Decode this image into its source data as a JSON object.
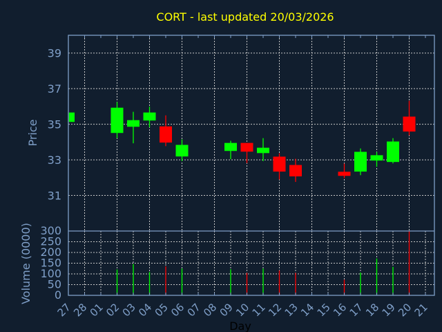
{
  "chart_data": {
    "type": "candlestick",
    "title": "CORT - last updated 20/03/2026",
    "title_color": "#ffff00",
    "xlabel": "Day",
    "ylabel_price": "Price",
    "ylabel_volume": "Volume (0000)",
    "price_ylim": [
      29,
      40
    ],
    "price_ticks": [
      "31",
      "33",
      "35",
      "37",
      "39"
    ],
    "volume_ylim": [
      0,
      300
    ],
    "volume_ticks": [
      "0",
      "50",
      "100",
      "150",
      "200",
      "250",
      "300"
    ],
    "x_tick_labels": [
      "27",
      "28",
      "01",
      "02",
      "03",
      "04",
      "05",
      "06",
      "07",
      "08",
      "09",
      "10",
      "11",
      "12",
      "13",
      "14",
      "15",
      "16",
      "17",
      "18",
      "19",
      "20",
      "21"
    ],
    "grid": true,
    "up_color": "#00ff00",
    "down_color": "#ff0000",
    "candles": [
      {
        "day": "27",
        "open": 35.13,
        "high": 35.66,
        "low": 35.13,
        "close": 35.66,
        "volume": null
      },
      {
        "day": "02",
        "open": 34.51,
        "high": 36.25,
        "low": 34.22,
        "close": 35.93,
        "volume": 121
      },
      {
        "day": "03",
        "open": 34.86,
        "high": 35.7,
        "low": 33.93,
        "close": 35.23,
        "volume": 146
      },
      {
        "day": "04",
        "open": 35.21,
        "high": 35.99,
        "low": 34.83,
        "close": 35.66,
        "volume": 109
      },
      {
        "day": "05",
        "open": 34.88,
        "high": 35.5,
        "low": 33.77,
        "close": 33.97,
        "volume": 135
      },
      {
        "day": "06",
        "open": 33.19,
        "high": 34.15,
        "low": 32.93,
        "close": 33.84,
        "volume": 125
      },
      {
        "day": "09",
        "open": 33.5,
        "high": 34.07,
        "low": 33.04,
        "close": 33.95,
        "volume": 122
      },
      {
        "day": "10",
        "open": 33.95,
        "high": 33.95,
        "low": 32.82,
        "close": 33.46,
        "volume": 105
      },
      {
        "day": "11",
        "open": 33.38,
        "high": 34.22,
        "low": 32.93,
        "close": 33.68,
        "volume": 125
      },
      {
        "day": "12",
        "open": 33.18,
        "high": 33.37,
        "low": 31.89,
        "close": 32.34,
        "volume": 116
      },
      {
        "day": "13",
        "open": 32.71,
        "high": 33.06,
        "low": 31.76,
        "close": 32.07,
        "volume": 105
      },
      {
        "day": "16",
        "open": 32.33,
        "high": 32.79,
        "low": 31.97,
        "close": 32.1,
        "volume": 73
      },
      {
        "day": "17",
        "open": 32.34,
        "high": 33.64,
        "low": 32.14,
        "close": 33.45,
        "volume": 106
      },
      {
        "day": "18",
        "open": 32.96,
        "high": 33.44,
        "low": 32.61,
        "close": 33.26,
        "volume": 172
      },
      {
        "day": "19",
        "open": 32.88,
        "high": 34.22,
        "low": 32.8,
        "close": 34.03,
        "volume": 133
      },
      {
        "day": "20",
        "open": 35.43,
        "high": 36.32,
        "low": 34.38,
        "close": 34.59,
        "volume": 300
      }
    ]
  }
}
